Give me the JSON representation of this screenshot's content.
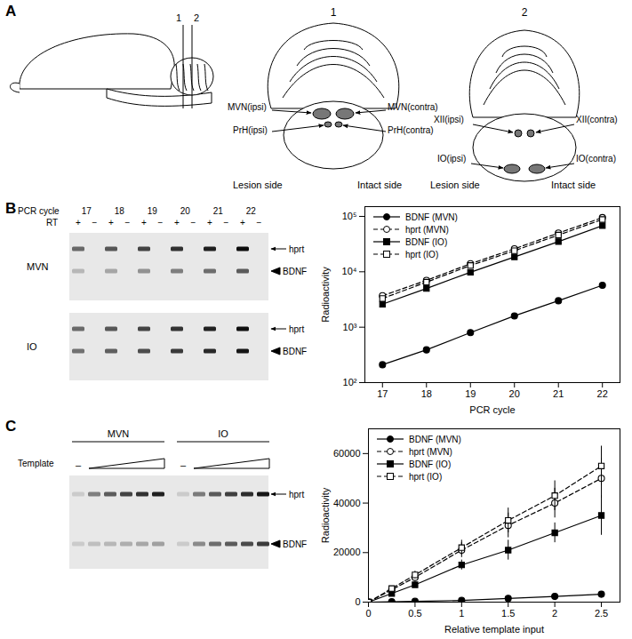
{
  "panel_a": {
    "label": "A",
    "sagittal_sections": [
      "1",
      "2"
    ],
    "section_1": {
      "number": "1",
      "labels": {
        "mvn_ipsi": "MVN(ipsi)",
        "mvn_contra": "MVN(contra)",
        "prh_ipsi": "PrH(ipsi)",
        "prh_contra": "PrH(contra)"
      },
      "sides": [
        "Lesion side",
        "Intact side"
      ]
    },
    "section_2": {
      "number": "2",
      "labels": {
        "xii_ipsi": "XII(ipsi)",
        "xii_contra": "XII(contra)",
        "io_ipsi": "IO(ipsi)",
        "io_contra": "IO(contra)"
      },
      "sides": [
        "Lesion side",
        "Intact side"
      ]
    }
  },
  "panel_b_gel": {
    "label": "B",
    "cycle_label": "PCR cycle",
    "cycles": [
      17,
      18,
      19,
      20,
      21,
      22
    ],
    "rt_label": "RT",
    "rt_signs": [
      "+",
      "−"
    ],
    "rows": [
      "MVN",
      "IO"
    ],
    "bands": [
      "hprt",
      "BDNF"
    ]
  },
  "panel_c_gel": {
    "label": "C",
    "columns": [
      "MVN",
      "IO"
    ],
    "template_label": "Template",
    "no_template": "–",
    "bands": [
      "hprt",
      "BDNF"
    ]
  },
  "chart_data": [
    {
      "type": "line",
      "x_label": "PCR cycle",
      "y_label": "Radioactivity",
      "log": "y",
      "legend": "top-left",
      "x": [
        17,
        18,
        19,
        20,
        21,
        22
      ],
      "xlim": [
        16.6,
        22.4
      ],
      "xticks": [
        17,
        18,
        19,
        20,
        21,
        22
      ],
      "ylim": [
        100,
        150000
      ],
      "yticks": [
        {
          "value": 100,
          "label": "10²"
        },
        {
          "value": 1000,
          "label": "10³"
        },
        {
          "value": 10000,
          "label": "10⁴"
        },
        {
          "value": 100000,
          "label": "10⁵"
        }
      ],
      "series": [
        {
          "name": "BDNF (MVN)",
          "color": "#000000",
          "marker": "circle",
          "line_style": "solid",
          "values": [
            210,
            390,
            800,
            1600,
            3000,
            5700
          ]
        },
        {
          "name": "hprt (MVN)",
          "color": "#000000",
          "marker": "circle-open",
          "line_style": "dashed",
          "values": [
            3700,
            7000,
            14000,
            26000,
            50000,
            95000
          ]
        },
        {
          "name": "BDNF (IO)",
          "color": "#000000",
          "marker": "square",
          "line_style": "solid",
          "values": [
            2600,
            5000,
            9800,
            18500,
            35000,
            68000
          ]
        },
        {
          "name": "hprt (IO)",
          "color": "#000000",
          "marker": "square-open",
          "line_style": "dashed",
          "values": [
            3300,
            6500,
            13000,
            24000,
            46000,
            88000
          ]
        }
      ]
    },
    {
      "type": "line",
      "x_label": "Relative template input",
      "y_label": "Radioactivity",
      "legend": "top-left",
      "x": [
        0,
        0.25,
        0.5,
        1,
        1.5,
        2,
        2.5
      ],
      "xlim": [
        0,
        2.7
      ],
      "xticks": [
        0,
        0.5,
        1,
        1.5,
        2,
        2.5
      ],
      "ylim": [
        0,
        70000
      ],
      "yticks": [
        0,
        20000,
        40000,
        60000
      ],
      "series": [
        {
          "name": "BDNF (MVN)",
          "color": "#000000",
          "marker": "circle",
          "line_style": "solid",
          "values": [
            0,
            150,
            300,
            700,
            1500,
            2300,
            3200
          ],
          "errors": [
            0,
            50,
            100,
            200,
            300,
            400,
            500
          ]
        },
        {
          "name": "hprt (MVN)",
          "color": "#000000",
          "marker": "circle-open",
          "line_style": "dashed",
          "values": [
            0,
            5000,
            10000,
            21000,
            31000,
            40000,
            50000
          ],
          "errors": [
            0,
            800,
            1500,
            3000,
            5000,
            6000,
            8000
          ]
        },
        {
          "name": "BDNF (IO)",
          "color": "#000000",
          "marker": "square",
          "line_style": "solid",
          "values": [
            0,
            3500,
            7000,
            15000,
            21000,
            28000,
            35000
          ],
          "errors": [
            0,
            700,
            1200,
            2000,
            4000,
            4000,
            8000
          ]
        },
        {
          "name": "hprt (IO)",
          "color": "#000000",
          "marker": "square-open",
          "line_style": "dashed",
          "values": [
            0,
            5500,
            11000,
            22000,
            33000,
            43000,
            55000
          ],
          "errors": [
            0,
            800,
            1500,
            3000,
            5000,
            6000,
            8000
          ]
        }
      ]
    }
  ]
}
